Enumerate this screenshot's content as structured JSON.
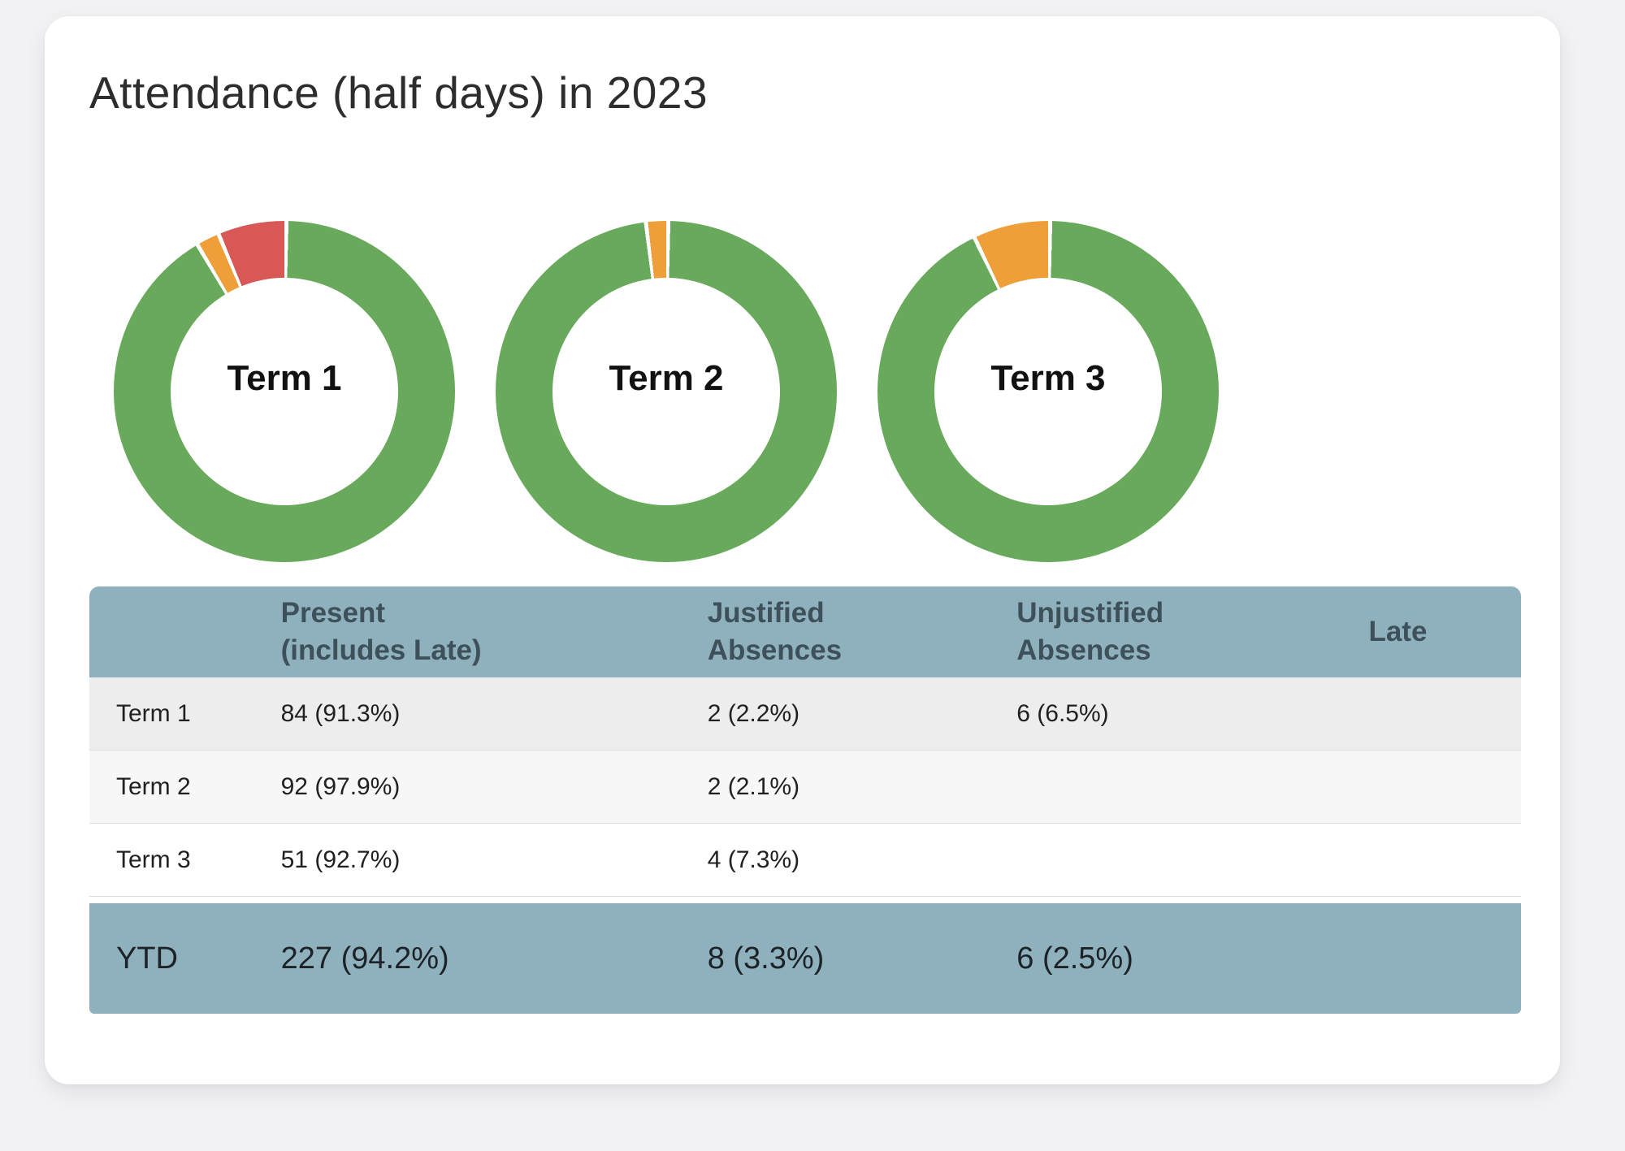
{
  "title": "Attendance (half days) in 2023",
  "colors": {
    "present_green": "#68A95B",
    "justified_orange": "#EF9F3A",
    "unjustified_red": "#D75854",
    "table_header_bg": "#8EB1BD",
    "table_header_text": "#3E505A",
    "ytd_row_bg": "#8EB1BD",
    "page_bg": "#F2F2F4",
    "card_bg": "#FFFFFF"
  },
  "chart_data": [
    {
      "type": "pie",
      "donut": true,
      "title": "Term 1",
      "labels": [
        "Present (includes Late)",
        "Justified Absences",
        "Unjustified Absences"
      ],
      "values": [
        84,
        2,
        6
      ],
      "values_pct": [
        91.3,
        2.2,
        6.5
      ],
      "colors": [
        "#68A95B",
        "#EF9F3A",
        "#D75854"
      ],
      "start_angle": "12 o'clock",
      "direction": "clockwise",
      "hole_ratio": 0.67,
      "legend": "none"
    },
    {
      "type": "pie",
      "donut": true,
      "title": "Term 2",
      "labels": [
        "Present (includes Late)",
        "Justified Absences"
      ],
      "values": [
        92,
        2
      ],
      "values_pct": [
        97.9,
        2.1
      ],
      "colors": [
        "#68A95B",
        "#EF9F3A"
      ],
      "start_angle": "12 o'clock",
      "direction": "clockwise",
      "hole_ratio": 0.67,
      "legend": "none"
    },
    {
      "type": "pie",
      "donut": true,
      "title": "Term 3",
      "labels": [
        "Present (includes Late)",
        "Justified Absences"
      ],
      "values": [
        51,
        4
      ],
      "values_pct": [
        92.7,
        7.3
      ],
      "colors": [
        "#68A95B",
        "#EF9F3A"
      ],
      "start_angle": "12 o'clock",
      "direction": "clockwise",
      "hole_ratio": 0.67,
      "legend": "none"
    }
  ],
  "table": {
    "headers": [
      "",
      "Present\n(includes Late)",
      "Justified\nAbsences",
      "Unjustified\nAbsences",
      "Late"
    ],
    "rows": [
      {
        "label": "Term 1",
        "present": "84 (91.3%)",
        "justified": "2 (2.2%)",
        "unjustified": "6 (6.5%)",
        "late": ""
      },
      {
        "label": "Term 2",
        "present": "92 (97.9%)",
        "justified": "2 (2.1%)",
        "unjustified": "",
        "late": ""
      },
      {
        "label": "Term 3",
        "present": "51 (92.7%)",
        "justified": "4 (7.3%)",
        "unjustified": "",
        "late": ""
      }
    ],
    "footer": {
      "label": "YTD",
      "present": "227 (94.2%)",
      "justified": "8 (3.3%)",
      "unjustified": "6 (2.5%)",
      "late": ""
    }
  }
}
